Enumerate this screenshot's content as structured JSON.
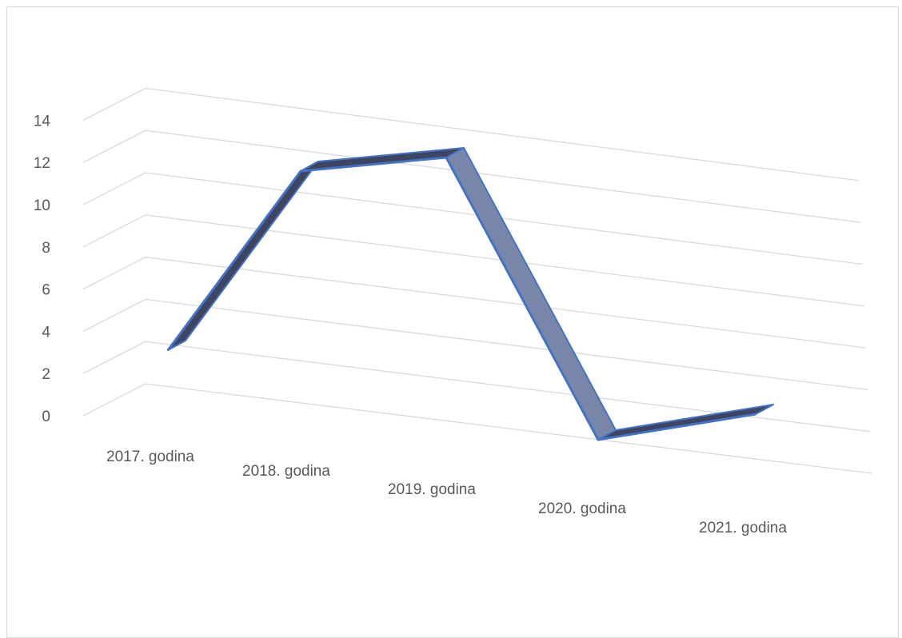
{
  "chart_data": {
    "type": "line",
    "style": "3d-ribbon",
    "title": "",
    "xlabel": "",
    "ylabel": "",
    "categories": [
      "2017. godina",
      "2018. godina",
      "2019. godina",
      "2020. godina",
      "2021. godina"
    ],
    "series": [
      {
        "values": [
          3,
          11,
          12,
          0,
          1
        ]
      }
    ],
    "ylim": [
      0,
      14
    ],
    "yticks": [
      "0",
      "2",
      "4",
      "6",
      "8",
      "10",
      "12",
      "14"
    ],
    "grid": true,
    "legend": "none",
    "colors": {
      "ribbon_top": "#7886aa",
      "ribbon_side": "#3d4560",
      "ribbon_edge": "#4472c4",
      "grid": "#d9d9d9",
      "axis_text": "#595959"
    }
  }
}
